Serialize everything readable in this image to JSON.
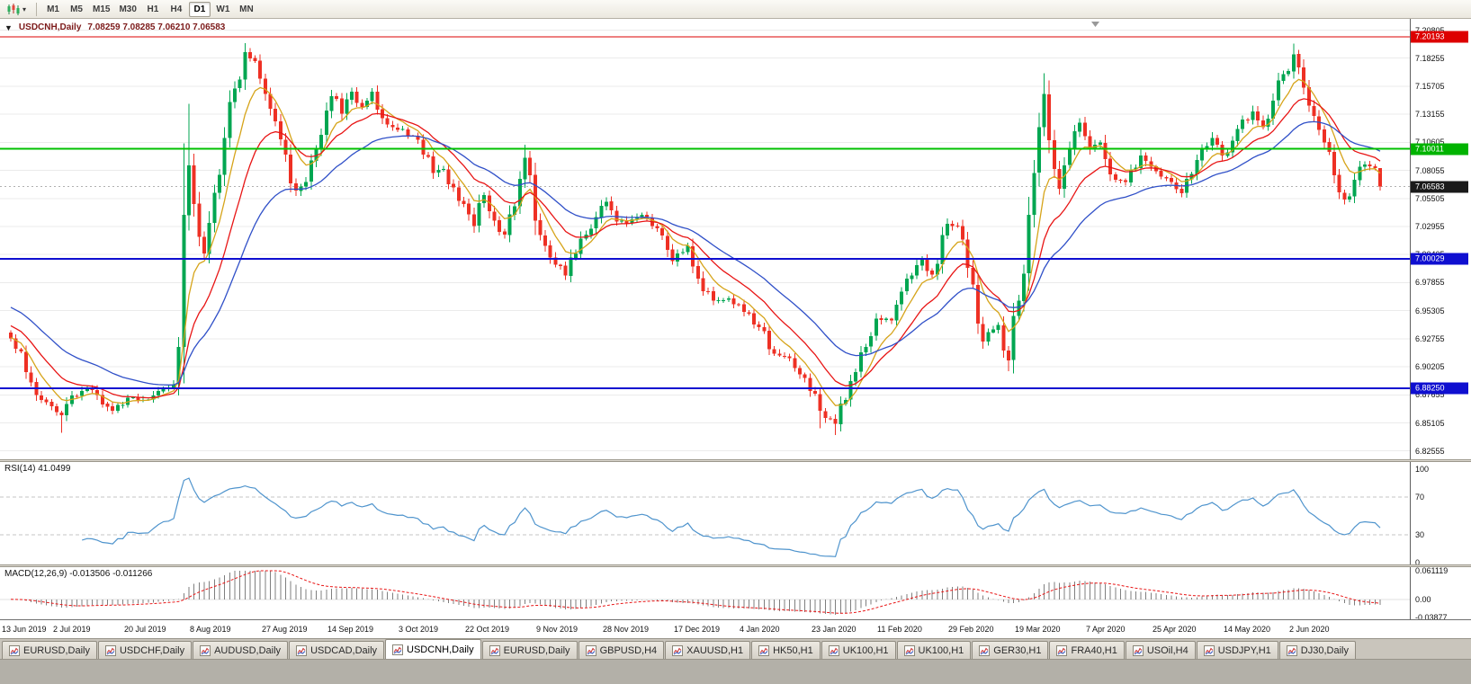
{
  "toolbar": {
    "periods": [
      "M1",
      "M5",
      "M15",
      "M30",
      "H1",
      "H4",
      "D1",
      "W1",
      "MN"
    ],
    "active_period": "D1",
    "dropdown_caret": "▾"
  },
  "chart": {
    "title_overlay": {
      "one_click_arrow": "▼",
      "symbol_period": "USDCNH,Daily",
      "ohlc": "7.08259 7.08285 7.06210 7.06583"
    }
  },
  "indicators": {
    "rsi": {
      "label": "RSI(14) 41.0499",
      "current": 41.0499,
      "axis_labels": [
        "100",
        "70",
        "30",
        "0"
      ],
      "level_lines": [
        70,
        30
      ],
      "line_color": "#4f94cd"
    },
    "macd": {
      "label": "MACD(12,26,9) -0.013506 -0.011266",
      "current_macd": -0.013506,
      "current_signal": -0.011266,
      "axis_labels": [
        "0.061119",
        "0.00",
        "-0.03877"
      ],
      "range": [
        -0.03877,
        0.061119
      ],
      "histogram_color": "#7f7f7f",
      "signal_color": "#e81515"
    }
  },
  "chart_data": {
    "type": "candlestick",
    "symbol": "USDCNH",
    "timeframe": "Daily",
    "bar_count": 270,
    "last_bar": {
      "open": 7.08259,
      "high": 7.08285,
      "low": 7.0621,
      "close": 7.06583
    },
    "y_tick_labels": [
      "7.20805",
      "7.18255",
      "7.15705",
      "7.13155",
      "7.10605",
      "7.08055",
      "7.05505",
      "7.02955",
      "7.00405",
      "6.97855",
      "6.95305",
      "6.92755",
      "6.90205",
      "6.87655",
      "6.85105",
      "6.82555"
    ],
    "x_labels": [
      "13 Jun 2019",
      "2 Jul 2019",
      "20 Jul 2019",
      "8 Aug 2019",
      "27 Aug 2019",
      "14 Sep 2019",
      "3 Oct 2019",
      "22 Oct 2019",
      "9 Nov 2019",
      "28 Nov 2019",
      "17 Dec 2019",
      "4 Jan 2020",
      "23 Jan 2020",
      "11 Feb 2020",
      "29 Feb 2020",
      "19 Mar 2020",
      "7 Apr 2020",
      "25 Apr 2020",
      "14 May 2020",
      "2 Jun 2020"
    ],
    "close_anchors": [
      [
        0,
        6.928
      ],
      [
        2,
        6.916
      ],
      [
        4,
        6.888
      ],
      [
        6,
        6.872
      ],
      [
        8,
        6.866
      ],
      [
        10,
        6.858
      ],
      [
        12,
        6.876
      ],
      [
        15,
        6.882
      ],
      [
        18,
        6.868
      ],
      [
        20,
        6.862
      ],
      [
        23,
        6.874
      ],
      [
        26,
        6.872
      ],
      [
        29,
        6.88
      ],
      [
        32,
        6.886
      ],
      [
        33,
        6.92
      ],
      [
        34,
        7.04
      ],
      [
        35,
        7.085
      ],
      [
        36,
        7.05
      ],
      [
        37,
        7.02
      ],
      [
        38,
        7.005
      ],
      [
        40,
        7.06
      ],
      [
        42,
        7.11
      ],
      [
        44,
        7.155
      ],
      [
        46,
        7.188
      ],
      [
        48,
        7.18
      ],
      [
        50,
        7.15
      ],
      [
        52,
        7.125
      ],
      [
        54,
        7.095
      ],
      [
        56,
        7.062
      ],
      [
        58,
        7.07
      ],
      [
        60,
        7.1
      ],
      [
        62,
        7.135
      ],
      [
        63,
        7.148
      ],
      [
        65,
        7.132
      ],
      [
        67,
        7.152
      ],
      [
        69,
        7.138
      ],
      [
        71,
        7.152
      ],
      [
        73,
        7.128
      ],
      [
        75,
        7.12
      ],
      [
        77,
        7.118
      ],
      [
        79,
        7.112
      ],
      [
        81,
        7.095
      ],
      [
        83,
        7.078
      ],
      [
        85,
        7.082
      ],
      [
        87,
        7.065
      ],
      [
        89,
        7.05
      ],
      [
        91,
        7.03
      ],
      [
        93,
        7.058
      ],
      [
        95,
        7.035
      ],
      [
        97,
        7.022
      ],
      [
        99,
        7.048
      ],
      [
        101,
        7.092
      ],
      [
        103,
        7.035
      ],
      [
        105,
        7.012
      ],
      [
        107,
        6.995
      ],
      [
        109,
        6.985
      ],
      [
        111,
        7.005
      ],
      [
        113,
        7.022
      ],
      [
        115,
        7.038
      ],
      [
        117,
        7.052
      ],
      [
        119,
        7.034
      ],
      [
        121,
        7.032
      ],
      [
        124,
        7.04
      ],
      [
        127,
        7.028
      ],
      [
        130,
        6.998
      ],
      [
        133,
        7.012
      ],
      [
        135,
        6.982
      ],
      [
        138,
        6.962
      ],
      [
        141,
        6.964
      ],
      [
        144,
        6.952
      ],
      [
        147,
        6.938
      ],
      [
        150,
        6.914
      ],
      [
        153,
        6.91
      ],
      [
        156,
        6.892
      ],
      [
        159,
        6.862
      ],
      [
        162,
        6.85
      ],
      [
        164,
        6.872
      ],
      [
        167,
        6.915
      ],
      [
        170,
        6.946
      ],
      [
        173,
        6.944
      ],
      [
        176,
        6.982
      ],
      [
        179,
        7.0
      ],
      [
        181,
        6.986
      ],
      [
        184,
        7.032
      ],
      [
        186,
        7.03
      ],
      [
        188,
        6.992
      ],
      [
        191,
        6.925
      ],
      [
        194,
        6.94
      ],
      [
        196,
        6.908
      ],
      [
        198,
        6.962
      ],
      [
        200,
        7.04
      ],
      [
        202,
        7.12
      ],
      [
        203,
        7.15
      ],
      [
        205,
        7.082
      ],
      [
        206,
        7.064
      ],
      [
        208,
        7.1
      ],
      [
        210,
        7.124
      ],
      [
        212,
        7.1
      ],
      [
        214,
        7.106
      ],
      [
        217,
        7.072
      ],
      [
        219,
        7.07
      ],
      [
        222,
        7.094
      ],
      [
        225,
        7.08
      ],
      [
        228,
        7.07
      ],
      [
        230,
        7.06
      ],
      [
        233,
        7.09
      ],
      [
        236,
        7.11
      ],
      [
        238,
        7.094
      ],
      [
        241,
        7.118
      ],
      [
        244,
        7.134
      ],
      [
        246,
        7.12
      ],
      [
        248,
        7.144
      ],
      [
        250,
        7.168
      ],
      [
        252,
        7.186
      ],
      [
        254,
        7.156
      ],
      [
        256,
        7.13
      ],
      [
        258,
        7.106
      ],
      [
        260,
        7.076
      ],
      [
        262,
        7.054
      ],
      [
        264,
        7.072
      ],
      [
        266,
        7.086
      ],
      [
        268,
        7.0826
      ],
      [
        269,
        7.06583
      ]
    ],
    "wick_overrides": [
      {
        "i": 10,
        "low": 6.842
      },
      {
        "i": 34,
        "high": 7.105
      },
      {
        "i": 35,
        "high": 7.141
      },
      {
        "i": 46,
        "high": 7.1962
      },
      {
        "i": 101,
        "high": 7.104
      },
      {
        "i": 159,
        "low": 6.846
      },
      {
        "i": 162,
        "low": 6.84
      },
      {
        "i": 196,
        "low": 6.898
      },
      {
        "i": 203,
        "high": 7.169
      },
      {
        "i": 252,
        "high": 7.1958
      }
    ],
    "levels": [
      {
        "name": "hline-resistance-720193",
        "price": 7.20193,
        "color": "#dd0000",
        "width": 1
      },
      {
        "name": "hline-level-710011",
        "price": 7.10011,
        "color": "#00c000",
        "width": 2
      },
      {
        "name": "hline-support-700029",
        "price": 7.00029,
        "color": "#0f0fd0",
        "width": 2
      },
      {
        "name": "hline-support-688250",
        "price": 6.8825,
        "color": "#0f0fd0",
        "width": 2
      }
    ],
    "bid_line": {
      "price": 7.06583,
      "color": "#b0b0b0"
    },
    "price_badges": [
      {
        "name": "resistance-price-badge",
        "text": "7.20193",
        "price": 7.20193,
        "color": "#dd0000"
      },
      {
        "name": "green-level-price-badge",
        "text": "7.10011",
        "price": 7.10011,
        "color": "#00b300"
      },
      {
        "name": "bid-price-badge",
        "text": "7.06583",
        "price": 7.06583,
        "color": "#1a1a1a"
      },
      {
        "name": "support-price-badge-1",
        "text": "7.00029",
        "price": 7.00029,
        "color": "#0f0fd0"
      },
      {
        "name": "support-price-badge-2",
        "text": "6.88250",
        "price": 6.8825,
        "color": "#0f0fd0"
      }
    ],
    "moving_averages": [
      {
        "period": 7,
        "color": "#d6a41a",
        "seed_offset": 0.001
      },
      {
        "period": 15,
        "color": "#e81515",
        "seed_offset": 0.013
      },
      {
        "period": 30,
        "color": "#3050c8",
        "seed_offset": 0.03
      }
    ],
    "colors": {
      "up": "#00a651",
      "down": "#ee3024",
      "grid": "#ebebeb"
    }
  },
  "tabs": {
    "active_index": 4,
    "items": [
      "EURUSD,Daily",
      "USDCHF,Daily",
      "AUDUSD,Daily",
      "USDCAD,Daily",
      "USDCNH,Daily",
      "EURUSD,Daily",
      "GBPUSD,H4",
      "XAUUSD,H1",
      "HK50,H1",
      "UK100,H1",
      "UK100,H1",
      "GER30,H1",
      "FRA40,H1",
      "USOil,H4",
      "USDJPY,H1",
      "DJ30,Daily"
    ]
  }
}
